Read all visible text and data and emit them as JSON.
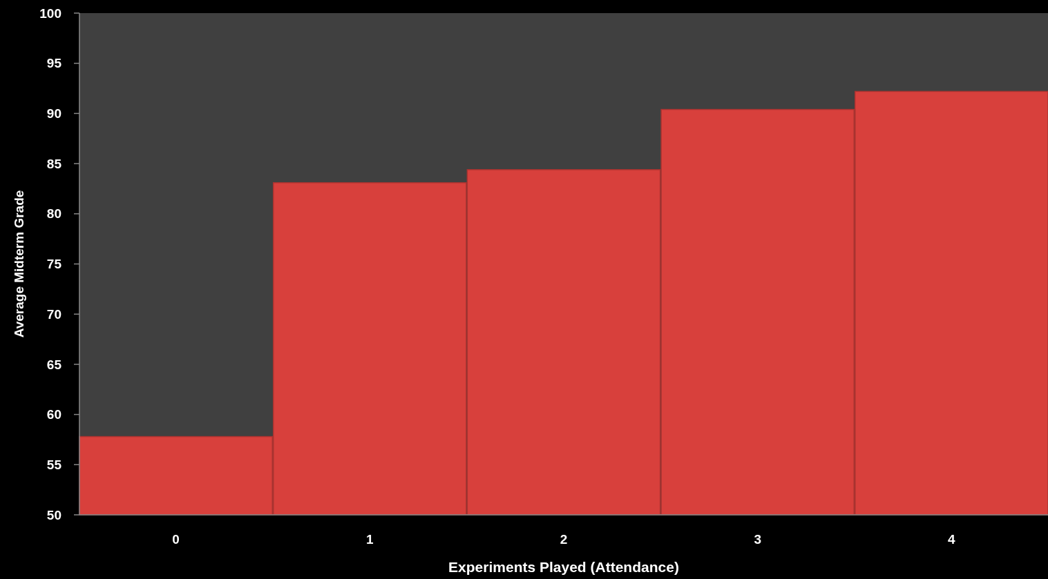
{
  "chart_data": {
    "type": "bar",
    "xlabel": "Experiments Played (Attendance)",
    "ylabel": "Average Midterm Grade",
    "categories": [
      "0",
      "1",
      "2",
      "3",
      "4"
    ],
    "values": [
      57.8,
      83.1,
      84.4,
      90.4,
      92.2
    ],
    "color": "#d8403c",
    "ylim": [
      50,
      100
    ],
    "yticks": [
      50,
      55,
      60,
      65,
      70,
      75,
      80,
      85,
      90,
      95,
      100
    ],
    "grid": false
  }
}
